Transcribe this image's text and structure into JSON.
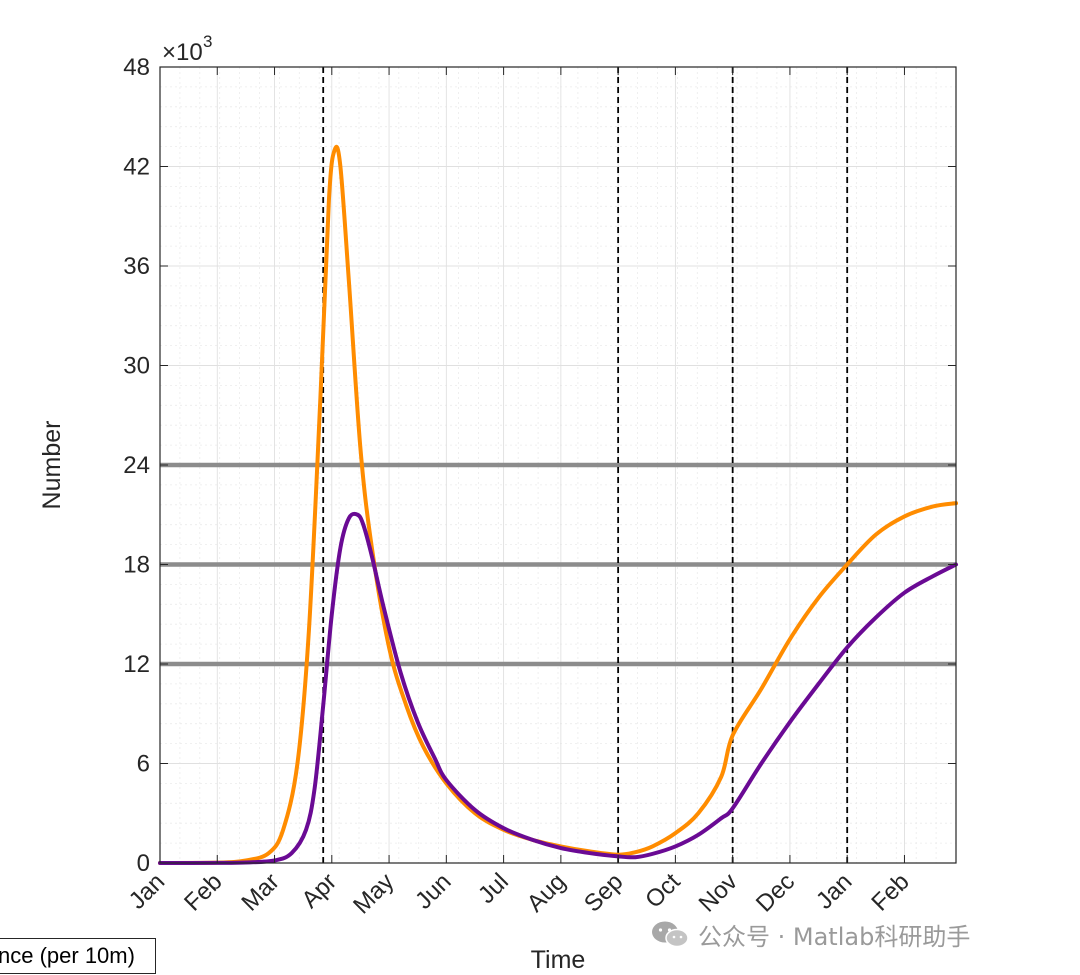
{
  "chart_data": {
    "type": "line",
    "xlabel": "Time",
    "ylabel": "Number",
    "y_exponent_label": "×10",
    "y_exponent_power": "3",
    "ylim": [
      0,
      48000
    ],
    "yticks": [
      "0",
      "6",
      "12",
      "18",
      "24",
      "30",
      "36",
      "42",
      "48"
    ],
    "ytick_values": [
      0,
      6000,
      12000,
      18000,
      24000,
      30000,
      36000,
      42000,
      48000
    ],
    "xlim": [
      0,
      13.9
    ],
    "xticks": [
      "Jan",
      "Feb",
      "Mar",
      "Apr",
      "May",
      "Jun",
      "Jul",
      "Aug",
      "Sep",
      "Oct",
      "Nov",
      "Dec",
      "Jan",
      "Feb"
    ],
    "xtick_values": [
      0,
      1,
      2,
      3,
      4,
      5,
      6,
      7,
      8,
      9,
      10,
      11,
      12,
      13
    ],
    "grid": "minor",
    "vlines": [
      2.85,
      8.0,
      10.0,
      12.0
    ],
    "hlines": [
      12000,
      18000,
      24000
    ],
    "colors": {
      "orange": "#ff8c00",
      "purple": "#6a0a94",
      "ref": "#8c8c8c",
      "vline": "#000000"
    },
    "series": [
      {
        "color": "#ff8c00",
        "x": [
          0,
          1.0,
          1.5,
          1.9,
          2.15,
          2.4,
          2.6,
          2.8,
          2.95,
          3.05,
          3.15,
          3.3,
          3.5,
          3.7,
          4.0,
          4.3,
          4.6,
          5.0,
          5.5,
          6.0,
          6.5,
          7.0,
          7.5,
          8.0,
          8.3,
          8.6,
          9.0,
          9.4,
          9.8,
          10.0,
          10.5,
          11.0,
          11.5,
          12.0,
          12.5,
          13.0,
          13.5,
          13.9
        ],
        "y": [
          0,
          20,
          150,
          600,
          2000,
          6000,
          14000,
          28000,
          40000,
          43000,
          42000,
          35000,
          25000,
          19000,
          13000,
          9500,
          7000,
          4800,
          3000,
          2000,
          1400,
          1000,
          700,
          500,
          650,
          1000,
          1800,
          3000,
          5200,
          7700,
          10500,
          13500,
          16000,
          18000,
          19800,
          20900,
          21500,
          21700
        ]
      },
      {
        "color": "#6a0a94",
        "x": [
          0,
          1.0,
          1.5,
          2.0,
          2.3,
          2.55,
          2.7,
          2.85,
          3.0,
          3.15,
          3.3,
          3.45,
          3.55,
          3.7,
          3.9,
          4.2,
          4.5,
          4.8,
          5.0,
          5.5,
          6.0,
          6.5,
          7.0,
          7.5,
          8.0,
          8.3,
          8.6,
          9.0,
          9.4,
          9.8,
          10.0,
          10.5,
          11.0,
          11.5,
          12.0,
          12.5,
          13.0,
          13.5,
          13.9
        ],
        "y": [
          0,
          5,
          30,
          150,
          600,
          2000,
          4500,
          9500,
          15000,
          19000,
          20800,
          21000,
          20400,
          18500,
          15500,
          11500,
          8500,
          6300,
          5000,
          3200,
          2100,
          1400,
          900,
          600,
          400,
          350,
          550,
          1000,
          1700,
          2700,
          3300,
          6000,
          8500,
          10800,
          13000,
          14800,
          16300,
          17300,
          18000
        ]
      }
    ]
  },
  "legend": {
    "visible_text": "nce (per 10m)"
  },
  "watermark": {
    "text": "公众号 · Matlab科研助手",
    "icon": "wechat-icon"
  }
}
